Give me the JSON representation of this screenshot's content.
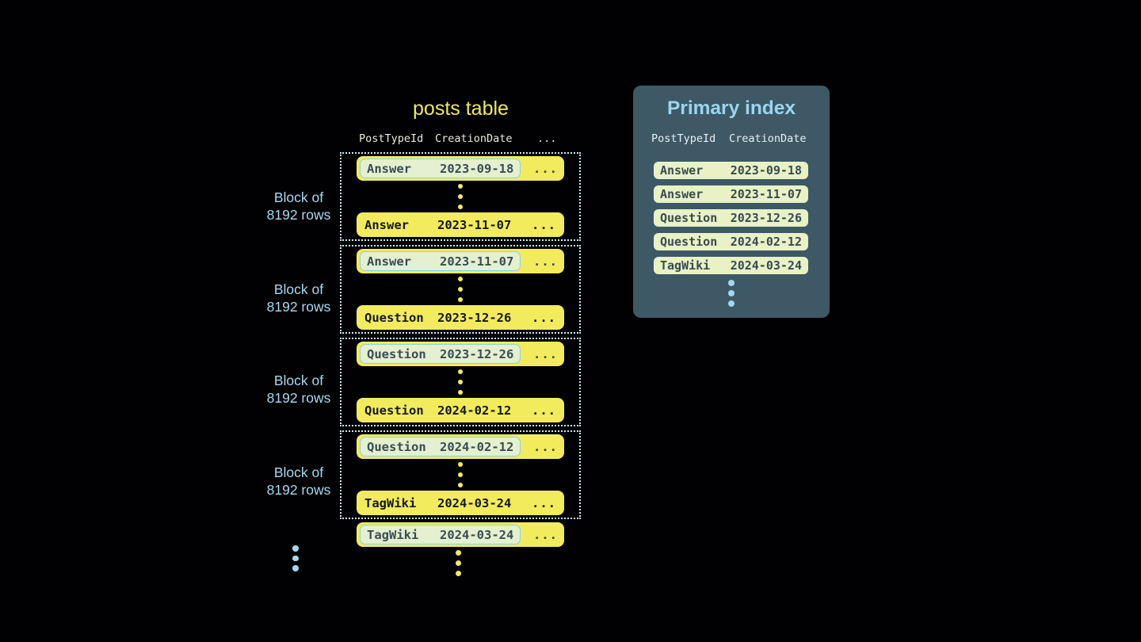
{
  "colors": {
    "background": "#010103",
    "row_yellow": "#f2eb5e",
    "title_yellow": "#f0e95c",
    "light_blue_text": "#a6d9f0",
    "dotted_block_border": "#cde9f4",
    "highlight_pill_bg": "#e4f0cf",
    "highlight_pill_border": "#8ad0e6",
    "dark_slate_text": "#3a4c55",
    "panel_bg": "#3e5866",
    "panel_title": "#9bd5f0",
    "index_row_bg": "#e8f2c5",
    "blue_dots": "#a3d7ee"
  },
  "posts_table": {
    "title": "posts table",
    "headers": {
      "post_type_id": "PostTypeId",
      "creation_date": "CreationDate",
      "more": "..."
    },
    "block_label": {
      "line1": "Block of",
      "line2": "8192 rows"
    },
    "blocks": [
      {
        "first": {
          "type": "Answer",
          "date": "2023-09-18",
          "more": "..."
        },
        "last": {
          "type": "Answer",
          "date": "2023-11-07",
          "more": "..."
        }
      },
      {
        "first": {
          "type": "Answer",
          "date": "2023-11-07",
          "more": "..."
        },
        "last": {
          "type": "Question",
          "date": "2023-12-26",
          "more": "..."
        }
      },
      {
        "first": {
          "type": "Question",
          "date": "2023-12-26",
          "more": "..."
        },
        "last": {
          "type": "Question",
          "date": "2024-02-12",
          "more": "..."
        }
      },
      {
        "first": {
          "type": "Question",
          "date": "2024-02-12",
          "more": "..."
        },
        "last": {
          "type": "TagWiki",
          "date": "2024-03-24",
          "more": "..."
        }
      }
    ],
    "trailing_row": {
      "type": "TagWiki",
      "date": "2024-03-24",
      "more": "..."
    }
  },
  "primary_index": {
    "title": "Primary index",
    "headers": {
      "post_type_id": "PostTypeId",
      "creation_date": "CreationDate"
    },
    "rows": [
      {
        "type": "Answer",
        "date": "2023-09-18"
      },
      {
        "type": "Answer",
        "date": "2023-11-07"
      },
      {
        "type": "Question",
        "date": "2023-12-26"
      },
      {
        "type": "Question",
        "date": "2024-02-12"
      },
      {
        "type": "TagWiki",
        "date": "2024-03-24"
      }
    ]
  }
}
